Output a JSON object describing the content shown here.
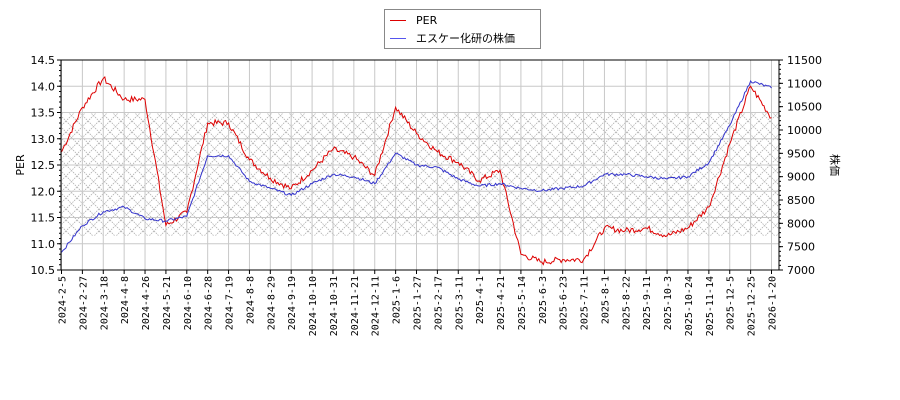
{
  "chart_data": {
    "type": "line",
    "title": "",
    "xlabel": "",
    "ylabel": "PER",
    "ylabel_right": "株価",
    "ylim": [
      10.5,
      14.5
    ],
    "ylim_right": [
      7000,
      11500
    ],
    "yticks": [
      "10.5",
      "11.0",
      "11.5",
      "12.0",
      "12.5",
      "13.0",
      "13.5",
      "14.0",
      "14.5"
    ],
    "yticks_right": [
      "7000",
      "7500",
      "8000",
      "8500",
      "9000",
      "9500",
      "10000",
      "10500",
      "11000",
      "11500"
    ],
    "grid": true,
    "legend_position": "top-center",
    "shaded_band_per": [
      11.15,
      13.5
    ],
    "categories": [
      "2024-2-5",
      "2024-2-27",
      "2024-3-18",
      "2024-4-8",
      "2024-4-26",
      "2024-5-21",
      "2024-6-10",
      "2024-6-28",
      "2024-7-19",
      "2024-8-8",
      "2024-8-29",
      "2024-9-19",
      "2024-10-10",
      "2024-10-31",
      "2024-11-21",
      "2024-12-11",
      "2025-1-6",
      "2025-1-27",
      "2025-2-17",
      "2025-3-11",
      "2025-4-1",
      "2025-4-21",
      "2025-5-14",
      "2025-6-3",
      "2025-6-23",
      "2025-7-11",
      "2025-8-1",
      "2025-8-22",
      "2025-9-11",
      "2025-10-3",
      "2025-10-24",
      "2025-11-14",
      "2025-12-5",
      "2025-12-25",
      "2026-1-20"
    ],
    "series": [
      {
        "name": "PER",
        "color": "#dd0000",
        "axis": "left",
        "values": [
          12.75,
          13.6,
          14.15,
          13.75,
          13.75,
          11.35,
          11.6,
          13.3,
          13.3,
          12.6,
          12.25,
          12.05,
          12.4,
          12.8,
          12.65,
          12.3,
          13.6,
          13.1,
          12.75,
          12.55,
          12.2,
          12.4,
          10.8,
          10.65,
          10.7,
          10.7,
          11.3,
          11.25,
          11.3,
          11.15,
          11.3,
          11.7,
          12.9,
          14.0,
          13.4
        ]
      },
      {
        "name": "エスケー化研の株価",
        "color": "#3333cc",
        "axis": "right",
        "values": [
          7380,
          7950,
          8250,
          8350,
          8100,
          8050,
          8150,
          9450,
          9450,
          8900,
          8750,
          8600,
          8850,
          9050,
          9000,
          8850,
          9500,
          9250,
          9200,
          8950,
          8800,
          8850,
          8750,
          8700,
          8750,
          8800,
          9050,
          9050,
          9000,
          8950,
          9000,
          9300,
          10100,
          11050,
          10900
        ]
      }
    ]
  },
  "legend": {
    "items": [
      {
        "label": "PER",
        "color": "#dd0000"
      },
      {
        "label": "エスケー化研の株価",
        "color": "#3333cc"
      }
    ]
  }
}
